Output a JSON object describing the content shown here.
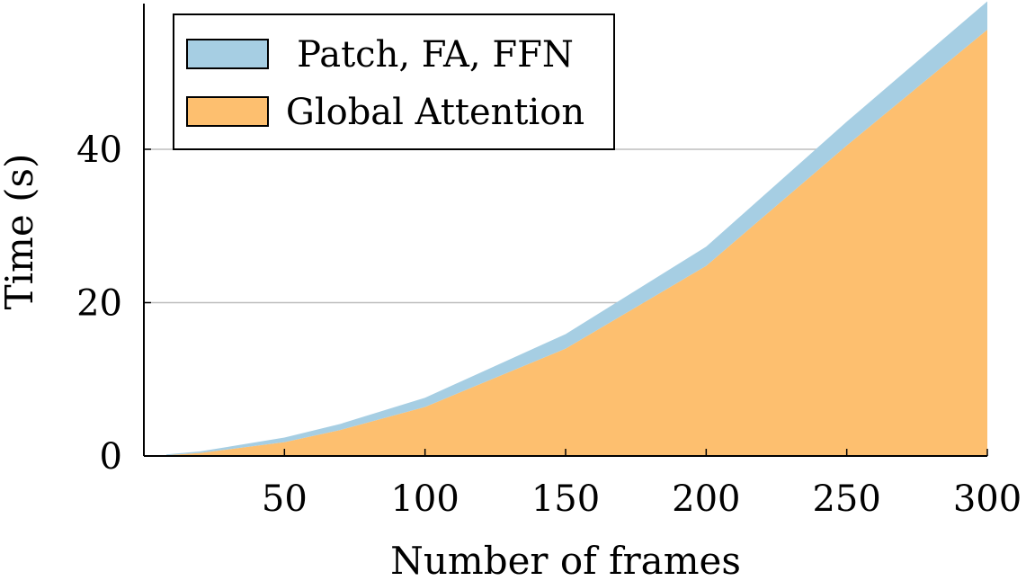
{
  "chart_data": {
    "type": "area",
    "stacked": true,
    "xlabel": "Number of frames",
    "ylabel": "Time (s)",
    "xlim": [
      0,
      300
    ],
    "ylim": [
      0,
      59
    ],
    "xticks": [
      50,
      100,
      150,
      200,
      250,
      300
    ],
    "yticks": [
      0,
      20,
      40
    ],
    "grid": "horizontal",
    "legend_position": "top-left",
    "x": [
      8,
      20,
      50,
      70,
      100,
      150,
      200,
      250,
      300
    ],
    "series": [
      {
        "name": "Global Attention",
        "color": "#fdbf6f",
        "values": [
          0.1,
          0.4,
          1.8,
          3.4,
          6.4,
          14.0,
          24.8,
          40.5,
          55.6
        ]
      },
      {
        "name": "Patch, FA, FFN",
        "color": "#a6cee3",
        "values": [
          0.1,
          0.2,
          0.6,
          0.8,
          1.2,
          1.9,
          2.5,
          3.1,
          3.7
        ]
      }
    ],
    "legend_order": [
      "Patch, FA, FFN",
      "Global Attention"
    ]
  }
}
